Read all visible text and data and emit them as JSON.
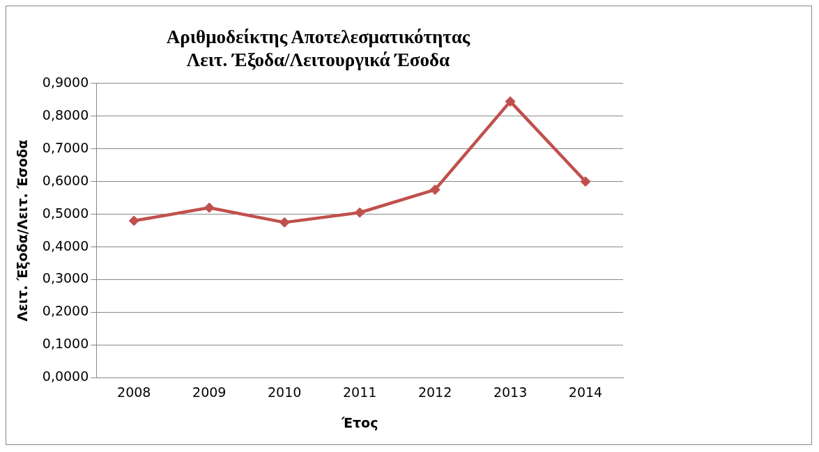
{
  "chart_data": {
    "type": "line",
    "title": "Αριθμοδείκτης Αποτελεσματικότητας\nΛειτ. Έξοδα/Λειτουργικά Έσοδα",
    "xlabel": "Έτος",
    "ylabel": "Λειτ. Έξοδα/Λειτ. Έσοδα",
    "categories": [
      "2008",
      "2009",
      "2010",
      "2011",
      "2012",
      "2013",
      "2014"
    ],
    "series": [
      {
        "color": "#c0504d",
        "values": [
          0.48,
          0.52,
          0.475,
          0.505,
          0.575,
          0.845,
          0.6
        ]
      }
    ],
    "ylim": [
      0,
      0.9
    ],
    "yticks": [
      {
        "value": 0,
        "label": "0,0000"
      },
      {
        "value": 0.1,
        "label": "0,1000"
      },
      {
        "value": 0.2,
        "label": "0,2000"
      },
      {
        "value": 0.3,
        "label": "0,3000"
      },
      {
        "value": 0.4,
        "label": "0,4000"
      },
      {
        "value": 0.5,
        "label": "0,5000"
      },
      {
        "value": 0.6,
        "label": "0,6000"
      },
      {
        "value": 0.7,
        "label": "0,7000"
      },
      {
        "value": 0.8,
        "label": "0,8000"
      },
      {
        "value": 0.9,
        "label": "0,9000"
      }
    ],
    "grid": "y",
    "marker": "diamond",
    "line_style": "solid"
  }
}
